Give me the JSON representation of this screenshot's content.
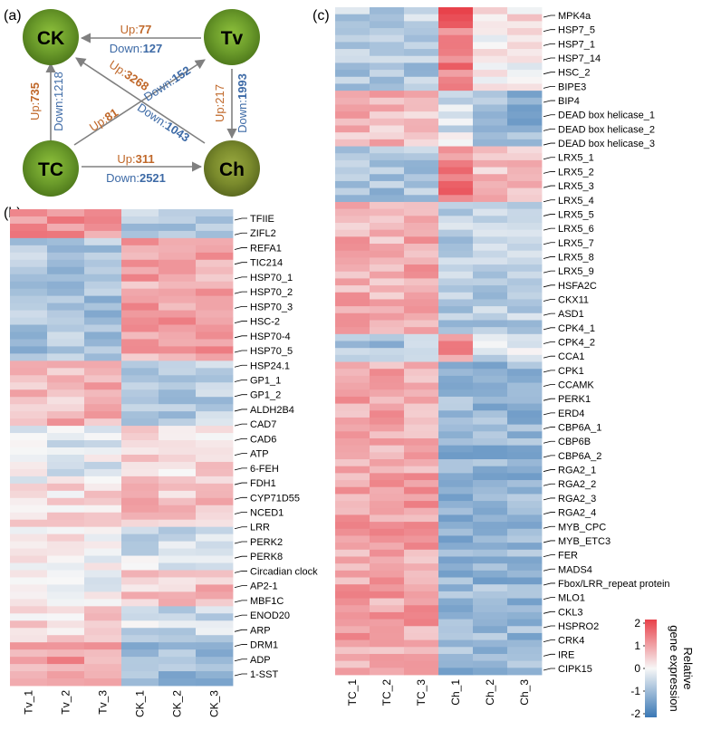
{
  "panel_labels": {
    "a": "(a)",
    "b": "(b)",
    "c": "(c)"
  },
  "network": {
    "nodes": {
      "CK": "CK",
      "Tv": "Tv",
      "TC": "TC",
      "Ch": "Ch"
    },
    "edges": {
      "tv_ck": {
        "up_label": "Up:",
        "up": "77",
        "down_label": "Down:",
        "down": "127"
      },
      "tc_ck": {
        "up_label": "Up:",
        "up": "735",
        "down_label": "Down:",
        "down": "1218"
      },
      "tv_ch": {
        "up_label": "Up:",
        "up": "217",
        "down_label": "Down:",
        "down": "1993"
      },
      "tc_ch": {
        "up_label": "Up:",
        "up": "311",
        "down_label": "Down:",
        "down": "2521"
      },
      "ch_ck": {
        "up_label": "Up:",
        "up": "3268",
        "down_label": "Down:",
        "down": "1043"
      },
      "tc_tv": {
        "up_label": "Up:",
        "up": "81",
        "down_label": "Down:",
        "down": "152"
      }
    },
    "colors": {
      "up": "#c0682a",
      "down": "#3d6aa6",
      "arrow": "#808080",
      "grass": "#6a9a2a"
    }
  },
  "heatmap_b": {
    "columns": [
      "Tv_1",
      "Tv_2",
      "Tv_3",
      "CK_1",
      "CK_2",
      "CK_3"
    ],
    "rows": 66,
    "genes": [
      "TFIIE",
      "ZIFL2",
      "REFA1",
      "TIC214",
      "HSP70_1",
      "HSP70_2",
      "HSP70_3",
      "HSC-2",
      "HSP70-4",
      "HSP70_5",
      "HSP24.1",
      "GP1_1",
      "GP1_2",
      "ALDH2B4",
      "CAD7",
      "CAD6",
      "ATP",
      "6-FEH",
      "FDH1",
      "CYP71D55",
      "NCED1",
      "LRR",
      "PERK2",
      "PERK8",
      "Circadian clock",
      "AP2-1",
      "MBF1C",
      "ENOD20",
      "ARP",
      "DRM1",
      "ADP",
      "1-SST"
    ]
  },
  "heatmap_c": {
    "columns": [
      "TC_1",
      "TC_2",
      "TC_3",
      "Ch_1",
      "Ch_2",
      "Ch_3"
    ],
    "rows": 96,
    "genes": [
      "MPK4a",
      "HSP7_5",
      "HSP7_1",
      "HSP7_14",
      "HSC_2",
      "BIPE3",
      "BIP4",
      "DEAD box helicase_1",
      "DEAD box helicase_2",
      "DEAD box helicase_3",
      "LRX5_1",
      "LRX5_2",
      "LRX5_3",
      "LRX5_4",
      "LRX5_5",
      "LRX5_6",
      "LRX5_7",
      "LRX5_8",
      "LRX5_9",
      "HSFA2C",
      "CKX11",
      "ASD1",
      "CPK4_1",
      "CPK4_2",
      "CCA1",
      "CPK1",
      "CCAMK",
      "PERK1",
      "ERD4",
      "CBP6A_1",
      "CBP6B",
      "CBP6A_2",
      "RGA2_1",
      "RGA2_2",
      "RGA2_3",
      "RGA2_4",
      "MYB_CPC",
      "MYB_ETC3",
      "FER",
      "MADS4",
      "Fbox/LRR_repeat protein",
      "MLO1",
      "CKL3",
      "HSPRO2",
      "CRK4",
      "IRE",
      "CIPK15"
    ]
  },
  "legend": {
    "title": "Relative gene expression",
    "title_line1": "Relative",
    "title_line2": "gene expression",
    "ticks": [
      "2",
      "1",
      "0",
      "-1",
      "-2"
    ],
    "colors": {
      "high": "#e8414a",
      "mid": "#f7f7f7",
      "low": "#3a78b5"
    }
  }
}
